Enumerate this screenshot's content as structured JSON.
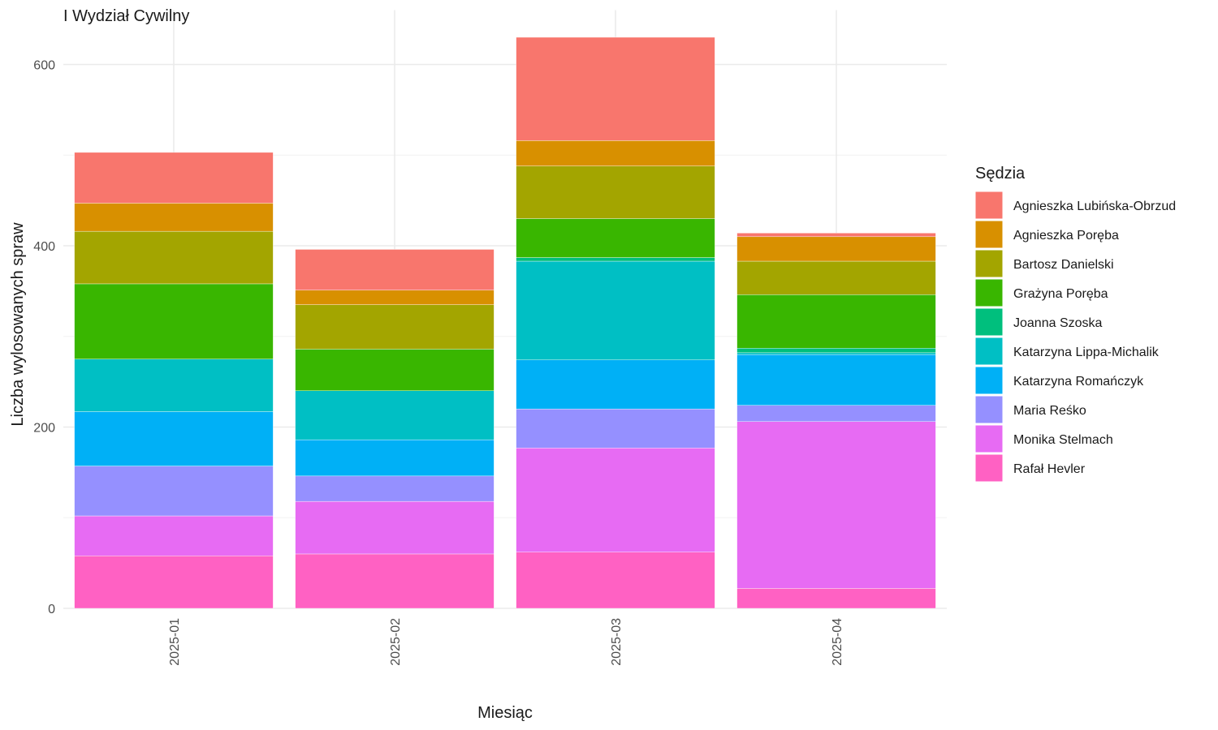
{
  "chart_data": {
    "type": "bar",
    "stacked": true,
    "title": "I Wydział Cywilny",
    "xlabel": "Miesiąc",
    "ylabel": "Liczba wylosowanych spraw",
    "ylim": [
      0,
      660
    ],
    "yticks": [
      0,
      200,
      400,
      600
    ],
    "grid": true,
    "legend_title": "Sędzia",
    "legend_position": "right",
    "categories": [
      "2025-01",
      "2025-02",
      "2025-03",
      "2025-04"
    ],
    "series": [
      {
        "name": "Rafał Hevler",
        "color": "#FF61C3",
        "values": [
          58,
          60,
          62,
          22
        ]
      },
      {
        "name": "Monika Stelmach",
        "color": "#E76BF3",
        "values": [
          44,
          58,
          115,
          184
        ]
      },
      {
        "name": "Maria Reśko",
        "color": "#9590FF",
        "values": [
          55,
          28,
          43,
          18
        ]
      },
      {
        "name": "Katarzyna Romańczyk",
        "color": "#00B0F6",
        "values": [
          60,
          40,
          54,
          56
        ]
      },
      {
        "name": "Katarzyna Lippa-Michalik",
        "color": "#00BFC4",
        "values": [
          58,
          54,
          109,
          2
        ]
      },
      {
        "name": "Joanna Szoska",
        "color": "#00BF7D",
        "values": [
          0,
          0,
          4,
          5
        ]
      },
      {
        "name": "Grażyna Poręba",
        "color": "#39B600",
        "values": [
          83,
          46,
          43,
          59
        ]
      },
      {
        "name": "Bartosz Danielski",
        "color": "#A3A500",
        "values": [
          58,
          49,
          58,
          37
        ]
      },
      {
        "name": "Agnieszka Poręba",
        "color": "#D89000",
        "values": [
          31,
          16,
          28,
          27
        ]
      },
      {
        "name": "Agnieszka Lubińska-Obrzud",
        "color": "#F8766D",
        "values": [
          56,
          45,
          114,
          4
        ]
      }
    ]
  }
}
